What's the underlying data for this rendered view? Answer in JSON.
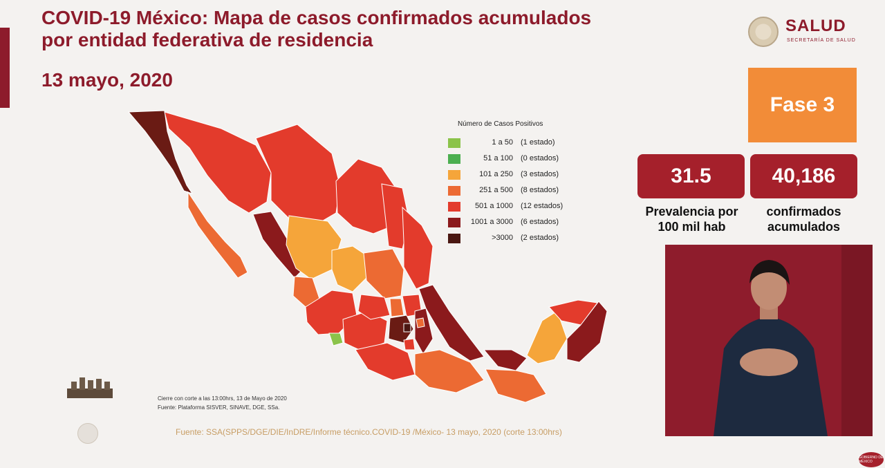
{
  "header": {
    "title_line1": "COVID-19 México: Mapa de casos confirmados acumulados",
    "title_line2": "por entidad federativa de residencia",
    "date": "13 mayo, 2020"
  },
  "logo": {
    "title": "SALUD",
    "subtitle": "SECRETARÍA DE SALUD",
    "icon": "mexico-seal-icon"
  },
  "phase_label": "Fase 3",
  "stats": {
    "prevalence_value": "31.5",
    "prevalence_label_line1": "Prevalencia por",
    "prevalence_label_line2": "100 mil hab",
    "confirmed_value": "40,186",
    "confirmed_label_line1": "confirmados",
    "confirmed_label_line2": "acumulados"
  },
  "legend": {
    "title": "Número de Casos Positivos",
    "items": [
      {
        "range": "1 a 50",
        "count": "(1 estado)",
        "color": "#8bc34a"
      },
      {
        "range": "51 a 100",
        "count": "(0 estados)",
        "color": "#4caf50"
      },
      {
        "range": "101 a 250",
        "count": "(3 estados)",
        "color": "#f5a53a"
      },
      {
        "range": "251 a 500",
        "count": "(8 estados)",
        "color": "#ec6a33"
      },
      {
        "range": "501 a 1000",
        "count": "(12 estados)",
        "color": "#e33b2c"
      },
      {
        "range": "1001 a 3000",
        "count": "(6 estados)",
        "color": "#8b1a1c"
      },
      {
        "range": ">3000",
        "count": "(2 estados)",
        "color": "#4a1712"
      }
    ]
  },
  "notes": {
    "cutoff": "Cierre con corte a las 13:00hrs, 13 de Mayo de 2020",
    "platform": "Fuente: Plataforma SISVER, SINAVE, DGE, SSa.",
    "source": "Fuente: SSA(SPPS/DGE/DIE/InDRE/Informe técnico.COVID-19 /México- 13 mayo, 2020 (corte 13:00hrs)"
  },
  "colors": {
    "brand": "#8d1b2b",
    "phase": "#f28c38",
    "stat_box": "#a5202b"
  },
  "footer_badge": "GOBIERNO DE MÉXICO"
}
